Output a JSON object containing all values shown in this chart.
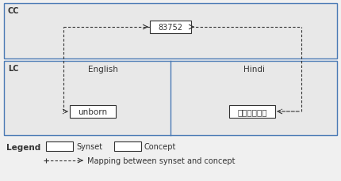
{
  "bg_color": "#e8e8e8",
  "white": "#ffffff",
  "dark_text": "#333333",
  "blue_border": "#4a7ab5",
  "cc_label": "CC",
  "lc_label": "LC",
  "english_label": "English",
  "hindi_label": "Hindi",
  "concept_label": "83752",
  "synset_en": "unborn",
  "synset_hi": "अजन्मा",
  "legend_synset": "Synset",
  "legend_concept": "Concept",
  "legend_mapping": "Mapping between synset and concept",
  "legend_label": "Legend",
  "fig_bg": "#f0f0f0"
}
